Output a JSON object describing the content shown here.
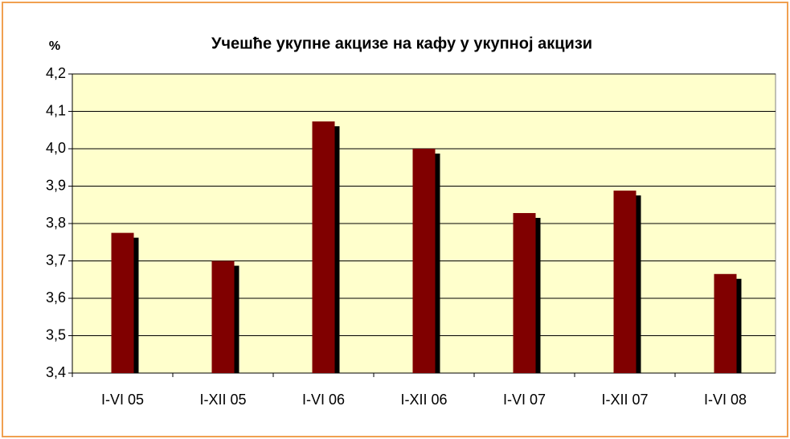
{
  "chart_data": {
    "type": "bar",
    "title": "Учешће укупне акцизе на кафу у укупној акцизи",
    "y_label": "%",
    "categories": [
      "I-VI 05",
      "I-XII 05",
      "I-VI 06",
      "I-XII 06",
      "I-VI 07",
      "I-XII 07",
      "I-VI 08"
    ],
    "values": [
      3.775,
      3.7,
      4.073,
      4.0,
      3.828,
      3.888,
      3.665
    ],
    "color": "#800000",
    "ylim": [
      3.4,
      4.2
    ],
    "yticks": [
      {
        "value": 3.4,
        "label": "3,4"
      },
      {
        "value": 3.5,
        "label": "3,5"
      },
      {
        "value": 3.6,
        "label": "3,6"
      },
      {
        "value": 3.7,
        "label": "3,7"
      },
      {
        "value": 3.8,
        "label": "3,8"
      },
      {
        "value": 3.9,
        "label": "3,9"
      },
      {
        "value": 4.0,
        "label": "4,0"
      },
      {
        "value": 4.1,
        "label": "4,1"
      },
      {
        "value": 4.2,
        "label": "4,2"
      }
    ],
    "grid": true
  }
}
